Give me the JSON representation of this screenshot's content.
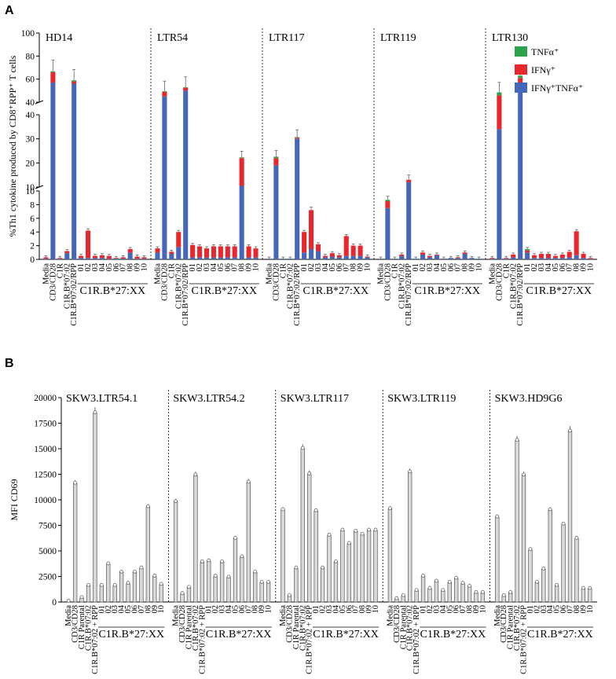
{
  "chart_data": [
    {
      "panel": "A",
      "type": "bar",
      "stacked": true,
      "broken_axis": true,
      "ylabel": "%Th1 cytokine produced by CD8⁺RPP⁺ T cells",
      "yticks": {
        "top": [
          "40",
          "60",
          "80",
          "100"
        ],
        "middle": [
          "10",
          "20",
          "30",
          "40"
        ],
        "bottom": [
          "0",
          "2",
          "4",
          "6",
          "8",
          "10"
        ]
      },
      "categories": [
        "Media",
        "CD3/CD28",
        "C1R",
        "C1R.B*07:02",
        "C1R.B*07:02/RPP",
        "01",
        "02",
        "03",
        "04",
        "05",
        "06",
        "07",
        "08",
        "09",
        "10"
      ],
      "category_group_label": "C1R.B*27:XX",
      "legend": [
        {
          "name": "TNFα⁺",
          "color": "#2ca34a"
        },
        {
          "name": "IFNγ⁺",
          "color": "#e8262b"
        },
        {
          "name": "IFNγ⁺TNFα⁺",
          "color": "#4466bb"
        }
      ],
      "groups": [
        {
          "name": "HD14",
          "series": {
            "IFNg_TNFa": [
              0.1,
              57,
              0.1,
              0.9,
              56,
              0.2,
              0.2,
              0.2,
              0.2,
              0.1,
              0.1,
              0.1,
              1.0,
              0.1,
              0.1
            ],
            "IFNg": [
              0.2,
              9,
              0.1,
              0.3,
              2,
              0.3,
              4.0,
              0.3,
              0.4,
              0.4,
              0.1,
              0.2,
              0.5,
              0.3,
              0.2
            ],
            "TNFa": [
              0.0,
              0.8,
              0.0,
              0.0,
              1.0,
              0.0,
              0.0,
              0.0,
              0.0,
              0.0,
              0.0,
              0.0,
              0.0,
              0.0,
              0.0
            ]
          }
        },
        {
          "name": "LTR54",
          "series": {
            "IFNg_TNFa": [
              1.0,
              45,
              0.8,
              1.8,
              50,
              0.3,
              0.3,
              0.3,
              0.3,
              0.3,
              0.3,
              0.3,
              10.5,
              0.3,
              0.3
            ],
            "IFNg": [
              0.6,
              4,
              0.3,
              2.2,
              2.5,
              1.8,
              1.6,
              1.3,
              1.6,
              1.6,
              1.6,
              1.6,
              11.5,
              1.6,
              1.3
            ],
            "TNFa": [
              0.0,
              0.5,
              0.0,
              0.0,
              0.5,
              0.0,
              0.0,
              0.0,
              0.0,
              0.0,
              0.0,
              0.0,
              0.3,
              0.0,
              0.0
            ]
          }
        },
        {
          "name": "LTR117",
          "series": {
            "IFNg_TNFa": [
              0.1,
              19,
              0.1,
              0.1,
              30,
              1.0,
              1.5,
              1.2,
              0.3,
              0.4,
              0.3,
              0.5,
              0.5,
              0.5,
              0.3
            ],
            "IFNg": [
              0.0,
              3,
              0.0,
              0.0,
              0.5,
              3.0,
              5.7,
              1.0,
              0.2,
              0.5,
              0.3,
              2.9,
              1.5,
              1.5,
              0.1
            ],
            "TNFa": [
              0.0,
              0.6,
              0.0,
              0.0,
              0.2,
              0.0,
              0.0,
              0.0,
              0.0,
              0.0,
              0.0,
              0.0,
              0.0,
              0.0,
              0.0
            ]
          }
        },
        {
          "name": "LTR119",
          "series": {
            "IFNg_TNFa": [
              0.1,
              7.5,
              0.1,
              0.5,
              12,
              0.1,
              0.7,
              0.3,
              0.6,
              0.1,
              0.2,
              0.2,
              0.8,
              0.2,
              0.1
            ],
            "IFNg": [
              0.0,
              1.0,
              0.0,
              0.2,
              1.0,
              0.0,
              0.3,
              0.2,
              0.1,
              0.0,
              0.0,
              0.1,
              0.2,
              0.0,
              0.0
            ],
            "TNFa": [
              0.0,
              0.2,
              0.0,
              0.0,
              0.0,
              0.0,
              0.0,
              0.0,
              0.0,
              0.0,
              0.0,
              0.0,
              0.0,
              0.0,
              0.0
            ]
          }
        },
        {
          "name": "LTR130",
          "series": {
            "IFNg_TNFa": [
              0.1,
              34,
              0.1,
              0.3,
              55,
              1.0,
              0.2,
              0.2,
              0.2,
              0.2,
              0.2,
              0.3,
              0.6,
              0.2,
              0.1
            ],
            "IFNg": [
              0.1,
              12,
              0.1,
              0.4,
              6,
              0.3,
              0.4,
              0.6,
              0.6,
              0.3,
              0.5,
              0.8,
              3.5,
              0.6,
              0.1
            ],
            "TNFa": [
              0.0,
              2.5,
              0.0,
              0.0,
              2.0,
              0.2,
              0.0,
              0.0,
              0.0,
              0.0,
              0.0,
              0.0,
              0.0,
              0.0,
              0.0
            ]
          }
        }
      ]
    },
    {
      "panel": "B",
      "type": "bar",
      "ylabel": "MFI CD69",
      "ylim": [
        0,
        20000
      ],
      "yticks": [
        "0",
        "2500",
        "5000",
        "7500",
        "10000",
        "12500",
        "15000",
        "17500",
        "20000"
      ],
      "categories": [
        "Media",
        "CD3/CD28",
        "C1R Parental",
        "C1R.B*07:02",
        "C1R.B*07:02 + RPP",
        "01",
        "02",
        "03",
        "04",
        "05",
        "06",
        "07",
        "08",
        "09",
        "10"
      ],
      "category_group_label": "C1R.B*27:XX",
      "groups": [
        {
          "name": "SKW3.LTR54.1",
          "values": [
            50,
            11600,
            400,
            1600,
            18500,
            1600,
            3700,
            1600,
            2900,
            1800,
            2900,
            3300,
            9300,
            2500,
            1700
          ]
        },
        {
          "name": "SKW3.LTR54.2",
          "values": [
            9800,
            800,
            1400,
            12400,
            3900,
            4000,
            2500,
            3900,
            2400,
            6200,
            4400,
            11700,
            2900,
            1900,
            1900
          ]
        },
        {
          "name": "SKW3.LTR117",
          "values": [
            9000,
            600,
            3300,
            15000,
            12500,
            8900,
            3300,
            6500,
            3900,
            7000,
            5700,
            6900,
            6600,
            7000,
            7000
          ]
        },
        {
          "name": "SKW3.LTR119",
          "values": [
            9100,
            300,
            600,
            12700,
            1100,
            2500,
            1300,
            2000,
            1100,
            1900,
            2300,
            1800,
            1500,
            900,
            900
          ]
        },
        {
          "name": "SKW3.HD9G6",
          "values": [
            8300,
            600,
            900,
            15800,
            12400,
            5100,
            1900,
            3200,
            9000,
            1600,
            7600,
            16700,
            6200,
            1300,
            1300
          ]
        }
      ]
    }
  ],
  "labels": {
    "panel_a": "A",
    "panel_b": "B"
  }
}
